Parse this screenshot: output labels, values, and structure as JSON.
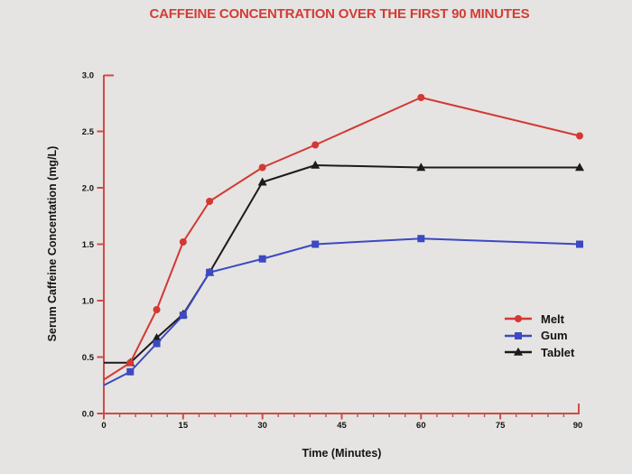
{
  "title": "CAFFEINE CONCENTRATION OVER THE FIRST 90 MINUTES",
  "chart_data": {
    "type": "line",
    "title": "CAFFEINE CONCENTRATION OVER THE FIRST 90 MINUTES",
    "xlabel": "Time (Minutes)",
    "ylabel": "Serum Caffeine Concentation (mg/L)",
    "xlim": [
      0,
      90
    ],
    "ylim": [
      0,
      3
    ],
    "grid": false,
    "legend_position": "right-middle",
    "x": [
      0,
      5,
      10,
      15,
      20,
      30,
      40,
      60,
      90
    ],
    "x_tick_values": [
      0,
      15,
      30,
      45,
      60,
      75,
      90
    ],
    "x_tick_labels": [
      "0",
      "15",
      "30",
      "45",
      "60",
      "75",
      "90"
    ],
    "x_minor_tick_step": 3,
    "y_tick_values": [
      0,
      0.5,
      1,
      1.5,
      2,
      2.5,
      3
    ],
    "y_tick_labels": [
      "0.0",
      "0.5",
      "1.0",
      "1.5",
      "2.0",
      "2.5",
      "3.0"
    ],
    "series": [
      {
        "name": "Melt",
        "marker": "circle",
        "color": "#d43832",
        "values": [
          0.3,
          0.45,
          0.92,
          1.52,
          1.88,
          2.18,
          2.38,
          2.8,
          2.46
        ]
      },
      {
        "name": "Gum",
        "marker": "square",
        "color": "#3c49c2",
        "values": [
          0.25,
          0.37,
          0.62,
          0.87,
          1.25,
          1.37,
          1.5,
          1.55,
          1.5
        ]
      },
      {
        "name": "Tablet",
        "marker": "triangle",
        "color": "#1b1b1b",
        "values": [
          0.45,
          0.45,
          0.67,
          0.88,
          1.25,
          2.05,
          2.2,
          2.18,
          2.18
        ]
      }
    ]
  },
  "colors": {
    "background": "#e5e4e2",
    "title_red": "#d53b34",
    "axis_red": "#cf4b46",
    "text_black": "#141414"
  }
}
